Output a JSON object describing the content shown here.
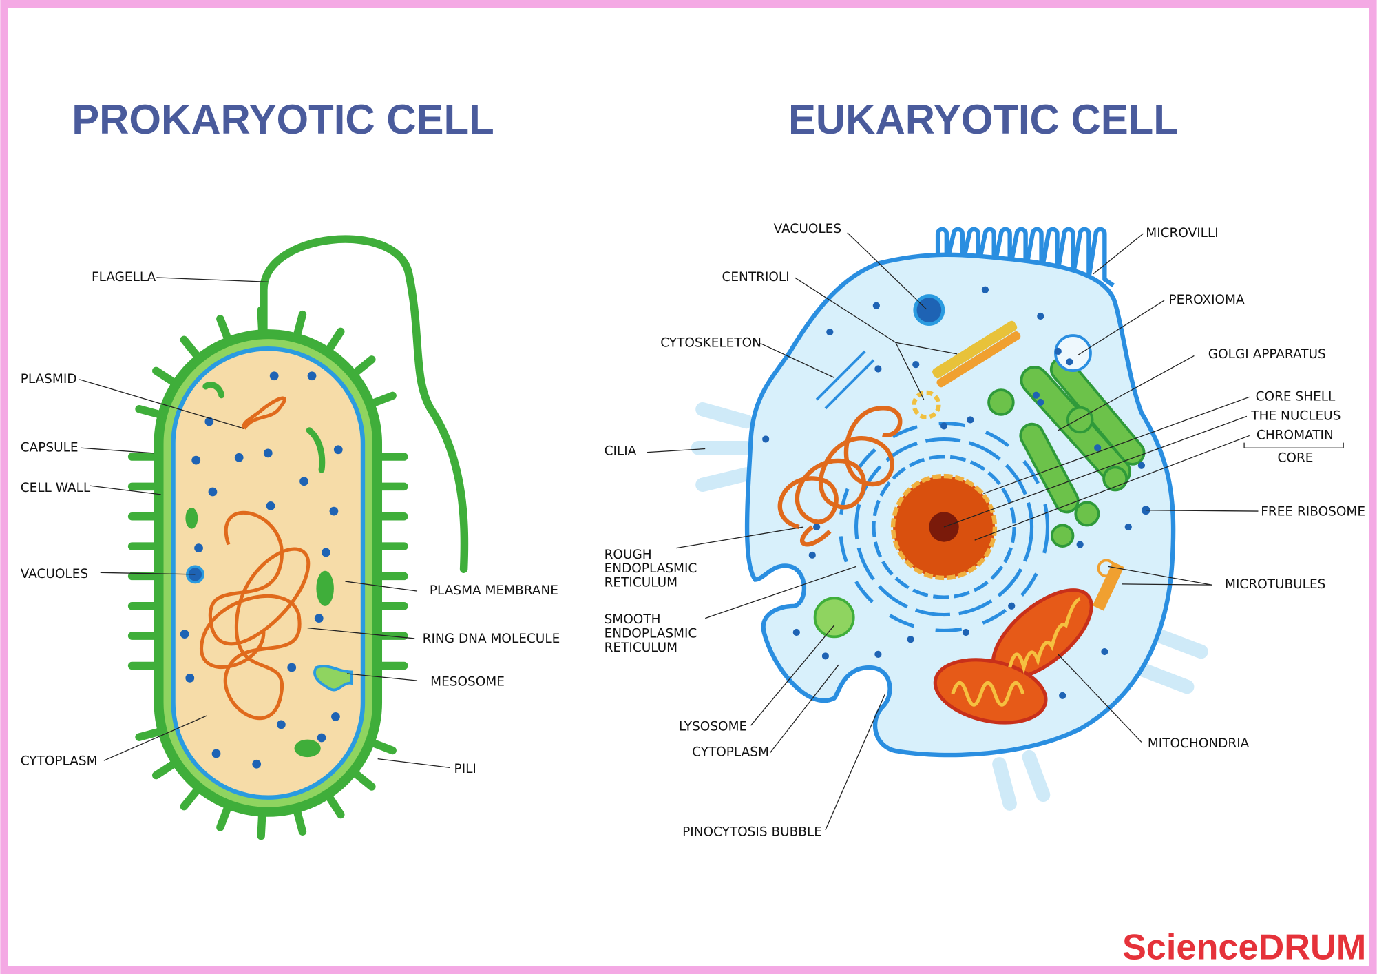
{
  "prokaryotic": {
    "title": "PROKARYOTIC CELL",
    "labels": [
      [
        "FLAGELLA"
      ],
      [
        "PLASMID"
      ],
      [
        "CAPSULE"
      ],
      [
        "CELL WALL"
      ],
      [
        "VACUOLES"
      ],
      [
        "CYTOPLASM"
      ],
      [
        "PLASMA MEMBRANE"
      ],
      [
        "RING DNA MOLECULE"
      ],
      [
        "MESOSOME"
      ],
      [
        "PILI"
      ]
    ]
  },
  "eukaryotic": {
    "title": "EUKARYOTIC CELL",
    "labels": [
      [
        "VACUOLES"
      ],
      [
        "CENTRIOLI"
      ],
      [
        "CYTOSKELETON"
      ],
      [
        "CILIA"
      ],
      [
        "ROUGH",
        "ENDOPLASMIC",
        "RETICULUM"
      ],
      [
        "SMOOTH",
        "ENDOPLASMIC",
        "RETICULUM"
      ],
      [
        "LYSOSOME"
      ],
      [
        "CYTOPLASM"
      ],
      [
        "PINOCYTOSIS BUBBLE"
      ],
      [
        "MICROVILLI"
      ],
      [
        "PEROXIOMA"
      ],
      [
        "GOLGI APPARATUS"
      ],
      [
        "CORE SHELL"
      ],
      [
        "THE NUCLEUS"
      ],
      [
        "CHROMATIN"
      ],
      [
        "CORE"
      ],
      [
        "FREE RIBOSOME"
      ],
      [
        "MICROTUBULES"
      ],
      [
        "MITOCHONDRIA"
      ]
    ]
  },
  "brand": "ScienceDRUM"
}
